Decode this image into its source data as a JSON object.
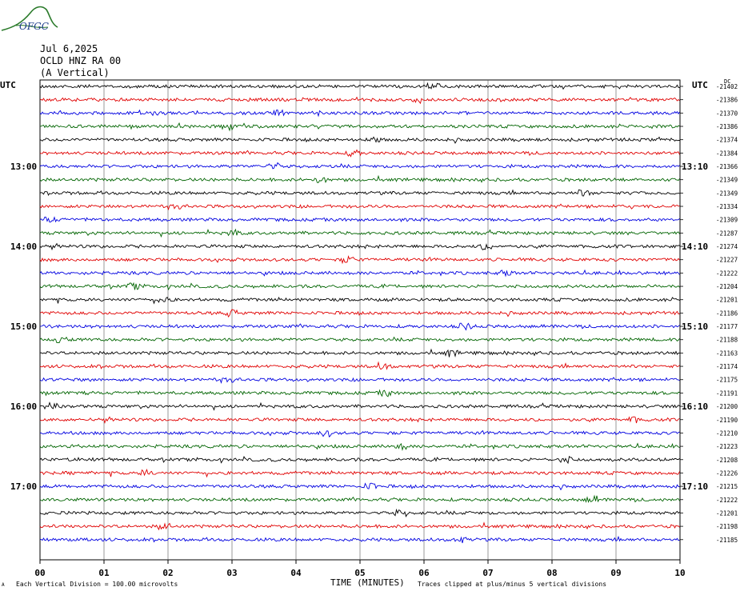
{
  "logo": {
    "text": "OFGC",
    "color": "#2a6a2a"
  },
  "header": {
    "date": "Jul 6,2025",
    "station": "OCLD HNZ RA 00",
    "component": "(A Vertical)"
  },
  "footer": {
    "scale_note": "Each Vertical Division =  100.00 microvolts",
    "clip_note": "Traces clipped at plus/minus 5 vertical divisions",
    "corner_mark": "A"
  },
  "chart_data": {
    "type": "line",
    "title": "",
    "xlabel": "TIME (MINUTES)",
    "ylabel": "",
    "x_range": [
      0,
      10
    ],
    "x_ticks": [
      "00",
      "01",
      "02",
      "03",
      "04",
      "05",
      "06",
      "07",
      "08",
      "09",
      "10"
    ],
    "left_axis_title": "UTC",
    "right_axis_title": "UTC",
    "dc_label": "DC",
    "trace_colors": [
      "#000000",
      "#e00000",
      "#0000e0",
      "#006400"
    ],
    "left_time_labels": [
      {
        "row": 6,
        "text": "13:00"
      },
      {
        "row": 12,
        "text": "14:00"
      },
      {
        "row": 18,
        "text": "15:00"
      },
      {
        "row": 24,
        "text": "16:00"
      },
      {
        "row": 30,
        "text": "17:00"
      }
    ],
    "right_time_labels": [
      {
        "row": 6,
        "text": "13:10"
      },
      {
        "row": 12,
        "text": "14:10"
      },
      {
        "row": 18,
        "text": "15:10"
      },
      {
        "row": 24,
        "text": "16:10"
      },
      {
        "row": 30,
        "text": "17:10"
      }
    ],
    "dc_offsets": [
      "-21402",
      "-21386",
      "-21370",
      "-21386",
      "-21374",
      "-21384",
      "-21366",
      "-21349",
      "-21349",
      "-21334",
      "-21309",
      "-21287",
      "-21274",
      "-21227",
      "-21222",
      "-21204",
      "-21201",
      "-21186",
      "-21177",
      "-21188",
      "-21163",
      "-21174",
      "-21175",
      "-21191",
      "-21200",
      "-21190",
      "-21210",
      "-21223",
      "-21208",
      "-21226",
      "-21215",
      "-21222",
      "-21201",
      "-21198",
      "-21185"
    ],
    "grid": true
  }
}
